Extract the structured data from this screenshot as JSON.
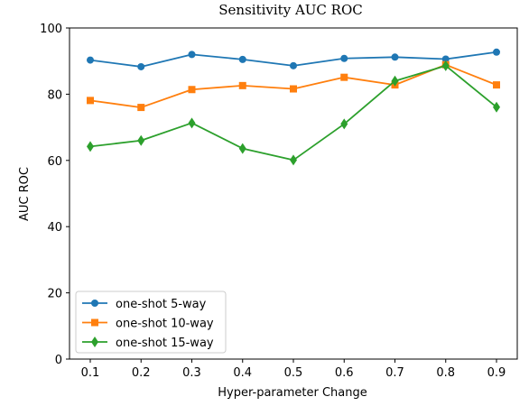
{
  "chart_data": {
    "type": "line",
    "title": "Sensitivity AUC ROC",
    "xlabel": "Hyper-parameter Change",
    "ylabel": "AUC ROC",
    "x": [
      0.1,
      0.2,
      0.3,
      0.4,
      0.5,
      0.6,
      0.7,
      0.8,
      0.9
    ],
    "x_tick_labels": [
      "0.1",
      "0.2",
      "0.3",
      "0.4",
      "0.5",
      "0.6",
      "0.7",
      "0.8",
      "0.9"
    ],
    "ylim": [
      0,
      100
    ],
    "y_ticks": [
      0,
      20,
      40,
      60,
      80,
      100
    ],
    "y_tick_labels": [
      "0",
      "20",
      "40",
      "60",
      "80",
      "100"
    ],
    "grid": false,
    "legend_position": "lower-left",
    "series": [
      {
        "name": "one-shot 5-way",
        "color": "#1f77b4",
        "marker": "circle",
        "values": [
          90.3,
          88.3,
          92.0,
          90.5,
          88.6,
          90.8,
          91.2,
          90.6,
          92.7
        ]
      },
      {
        "name": "one-shot 10-way",
        "color": "#ff7f0e",
        "marker": "square",
        "values": [
          78.1,
          76.0,
          81.4,
          82.6,
          81.6,
          85.1,
          82.8,
          88.9,
          82.8
        ]
      },
      {
        "name": "one-shot 15-way",
        "color": "#2ca02c",
        "marker": "diamond",
        "values": [
          64.2,
          66.0,
          71.3,
          63.6,
          60.1,
          71.0,
          84.0,
          88.6,
          76.1
        ]
      }
    ]
  }
}
